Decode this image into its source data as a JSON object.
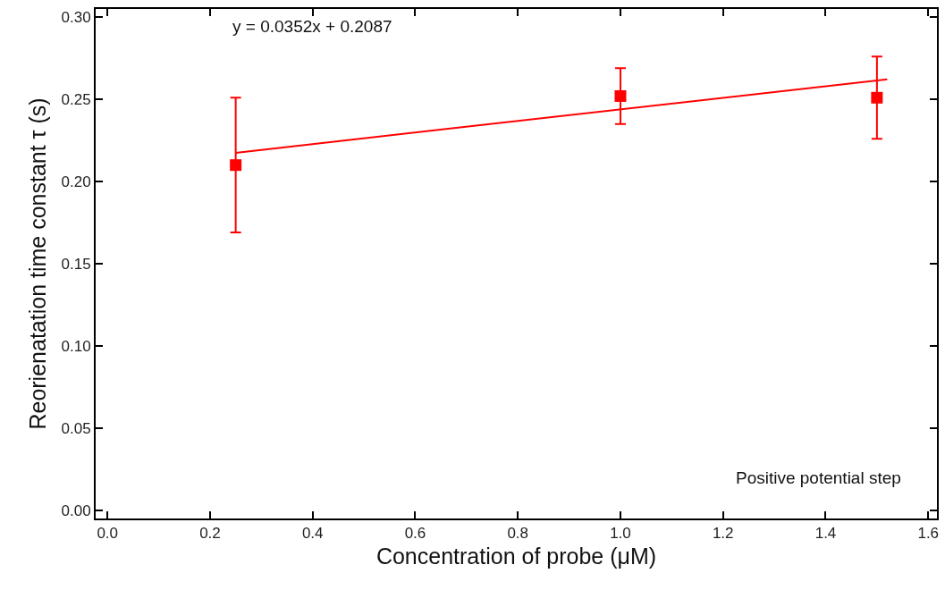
{
  "chart_data": {
    "type": "scatter",
    "xlabel": "Concentration of probe (μM)",
    "ylabel": "Reorienatation time constant τ (s)",
    "annotations": [
      "y = 0.0352x + 0.2087",
      "Positive potential step"
    ],
    "series": [
      {
        "color": "#ff0000",
        "marker": "square",
        "x": [
          0.25,
          1.0,
          1.5
        ],
        "values": [
          0.21,
          0.252,
          0.251
        ],
        "errors": [
          [
            0.169,
            0.251
          ],
          [
            0.235,
            0.269
          ],
          [
            0.226,
            0.276
          ]
        ]
      },
      {
        "type": "line",
        "marker": "none",
        "color": "#ff0000",
        "x": [
          0.25,
          1.52
        ],
        "values": [
          0.2175,
          0.2622
        ]
      }
    ],
    "line_style": "solid",
    "grid": false,
    "legend": false,
    "xlim": [
      -0.023,
      1.617
    ],
    "xticks": [
      {
        "value": 0,
        "label": "0.0"
      },
      0.2,
      0.4,
      0.6,
      0.8,
      {
        "value": 1,
        "label": "1.0"
      },
      1.2,
      1.4,
      1.6
    ],
    "ylim": [
      -0.005,
      0.305
    ],
    "yticks": [
      {
        "value": 0,
        "label": "0.00"
      },
      0.05,
      {
        "value": 0.1,
        "label": "0.10"
      },
      0.15,
      {
        "value": 0.2,
        "label": "0.20"
      },
      0.25,
      {
        "value": 0.3,
        "label": "0.30"
      }
    ]
  }
}
